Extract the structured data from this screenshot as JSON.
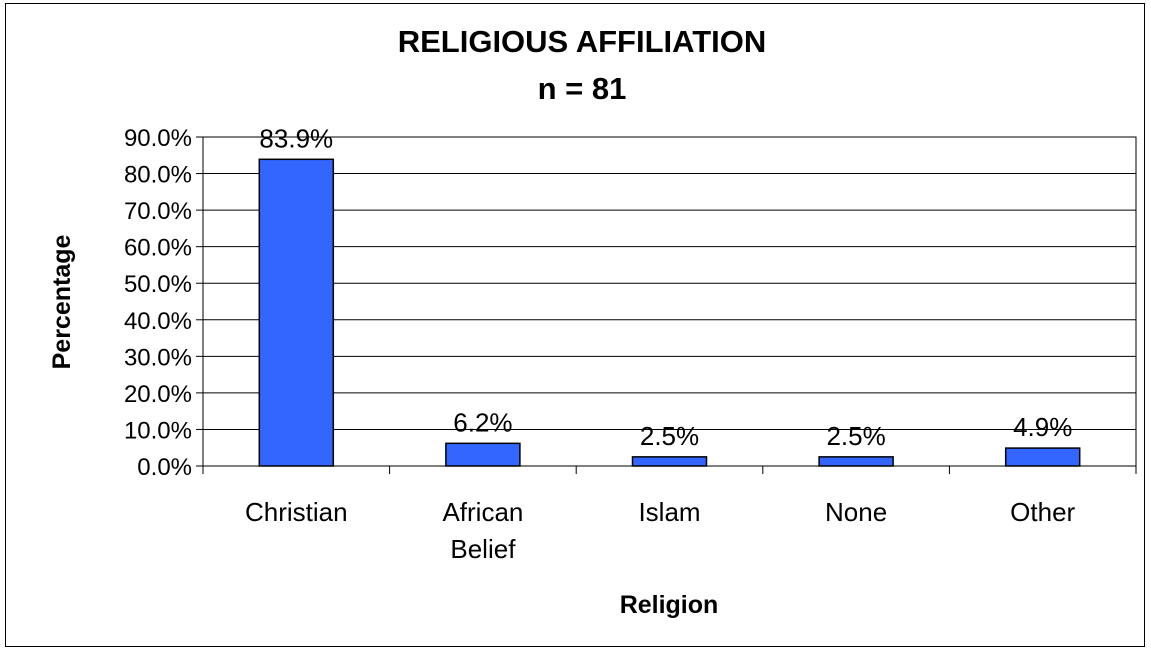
{
  "chart_data": {
    "type": "bar",
    "title": "RELIGIOUS AFFILIATION",
    "subtitle": "n = 81",
    "xlabel": "Religion",
    "ylabel": "Percentage",
    "categories": [
      [
        "Christian"
      ],
      [
        "African",
        "Belief"
      ],
      [
        "Islam"
      ],
      [
        "None"
      ],
      [
        "Other"
      ]
    ],
    "values": [
      83.9,
      6.2,
      2.5,
      2.5,
      4.9
    ],
    "data_labels": [
      "83.9%",
      "6.2%",
      "2.5%",
      "2.5%",
      "4.9%"
    ],
    "ylim": [
      0,
      90
    ],
    "yticks": [
      "0.0%",
      "10.0%",
      "20.0%",
      "30.0%",
      "40.0%",
      "50.0%",
      "60.0%",
      "70.0%",
      "80.0%",
      "90.0%"
    ],
    "grid": true,
    "legend": "none",
    "bar_color": "#3366ff"
  }
}
